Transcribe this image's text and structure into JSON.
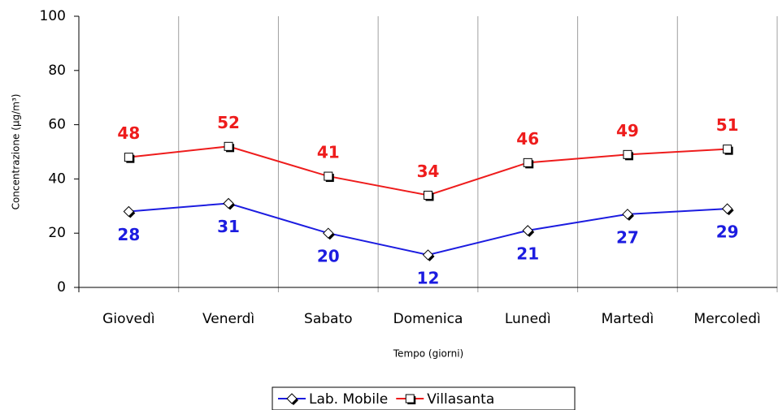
{
  "chart_data": {
    "type": "line",
    "y_label": "Concentrazione (µg/m³)",
    "x_label": "Tempo (giorni)",
    "categories": [
      "Giovedì",
      "Venerdì",
      "Sabato",
      "Domenica",
      "Lunedì",
      "Martedì",
      "Mercoledì"
    ],
    "series": [
      {
        "name": "Lab. Mobile",
        "color": "#1c1ce0",
        "marker": "diamond",
        "values": [
          28,
          31,
          20,
          12,
          21,
          27,
          29
        ]
      },
      {
        "name": "Villasanta",
        "color": "#ee1c1c",
        "marker": "square",
        "values": [
          48,
          52,
          41,
          34,
          46,
          49,
          51
        ]
      }
    ],
    "ylim": [
      0,
      100
    ],
    "yticks": [
      0,
      20,
      40,
      60,
      80,
      100
    ]
  }
}
